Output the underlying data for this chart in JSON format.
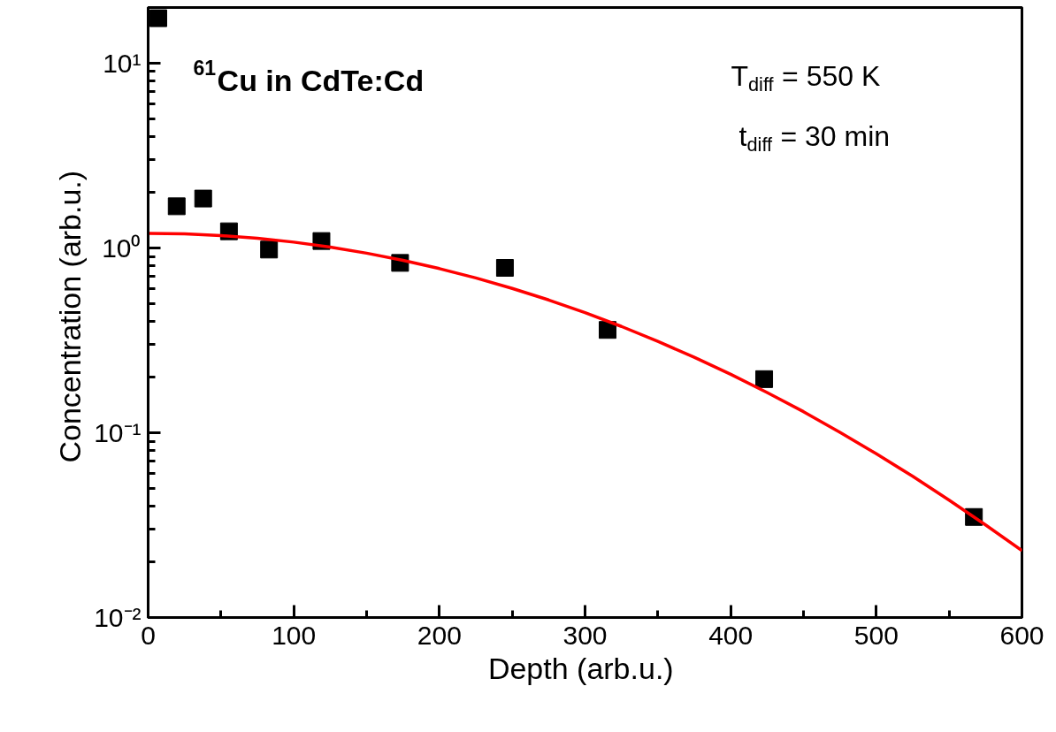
{
  "chart_data": {
    "type": "scatter",
    "xlabel": "Depth  (arb.u.)",
    "ylabel": "Concentration  (arb.u.)",
    "annotations": [
      "$^{61}$Cu in CdTe:Cd",
      "T$_{diff}$ = 550 K",
      "t$_{diff}$ = 30 min"
    ],
    "series": [
      {
        "color": "#000000",
        "marker": "square",
        "x": [
          7,
          19.6,
          37.8,
          55.5,
          83,
          119,
          173,
          245,
          315.5,
          423,
          567
        ],
        "values": [
          17.5,
          1.68,
          1.85,
          1.23,
          0.98,
          1.09,
          0.83,
          0.78,
          0.36,
          0.195,
          0.035
        ]
      },
      {
        "type": "line",
        "color": "#ff0000",
        "line_style": "solid",
        "x": [
          0,
          25,
          50,
          75,
          100,
          125,
          150,
          175,
          200,
          225,
          250,
          275,
          300,
          325,
          350,
          375,
          400,
          425,
          450,
          475,
          500,
          525,
          550,
          575,
          600
        ],
        "values": [
          1.2,
          1.192,
          1.167,
          1.128,
          1.075,
          1.01,
          0.937,
          0.857,
          0.773,
          0.688,
          0.604,
          0.523,
          0.447,
          0.376,
          0.312,
          0.256,
          0.207,
          0.165,
          0.13,
          0.1006,
          0.0769,
          0.0581,
          0.0432,
          0.0317,
          0.023
        ]
      }
    ],
    "log": "y",
    "grid": false,
    "xlim": [
      0,
      600
    ],
    "xticks": [
      0,
      100,
      200,
      300,
      400,
      500,
      600
    ],
    "ylim": [
      0.01,
      20
    ],
    "yticks": [
      {
        "value": 0.01,
        "label": "10⁻²"
      },
      {
        "value": 0.1,
        "label": "10⁻¹"
      },
      {
        "value": 1,
        "label": "10⁰"
      },
      {
        "value": 10,
        "label": "10¹"
      }
    ]
  }
}
